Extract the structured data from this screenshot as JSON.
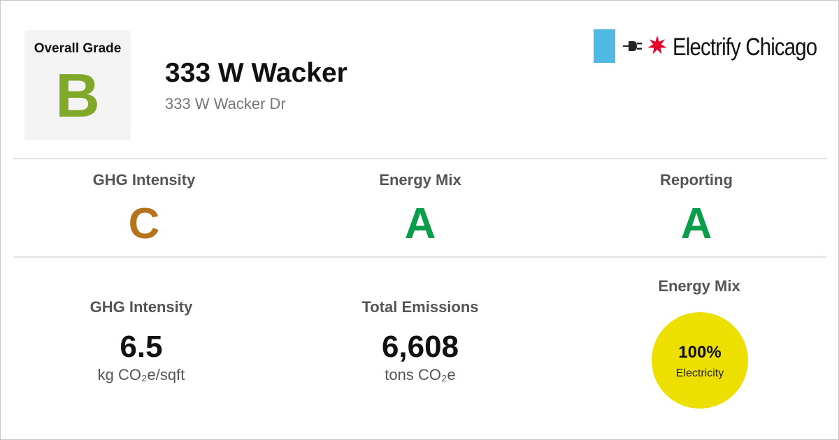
{
  "overall": {
    "label": "Overall Grade",
    "grade": "B",
    "grade_color": "#80a829"
  },
  "building": {
    "name": "333 W Wacker",
    "address": "333 W Wacker Dr"
  },
  "logo": {
    "text": "Electrify Chicago",
    "bar_color": "#4fb9e3",
    "star_color": "#e4002b",
    "icons": [
      "plug-icon",
      "chicago-star-icon"
    ]
  },
  "grades": [
    {
      "title": "GHG Intensity",
      "grade": "C",
      "color": "#b5731b"
    },
    {
      "title": "Energy Mix",
      "grade": "A",
      "color": "#0a9e4a"
    },
    {
      "title": "Reporting",
      "grade": "A",
      "color": "#0a9e4a"
    }
  ],
  "stats": [
    {
      "title": "GHG Intensity",
      "value": "6.5",
      "unit": "kg CO₂e/sqft"
    },
    {
      "title": "Total Emissions",
      "value": "6,608",
      "unit": "tons CO₂e"
    }
  ],
  "energy_mix": {
    "title": "Energy Mix",
    "percent": "100%",
    "label": "Electricity",
    "circle_color": "#ede000"
  }
}
